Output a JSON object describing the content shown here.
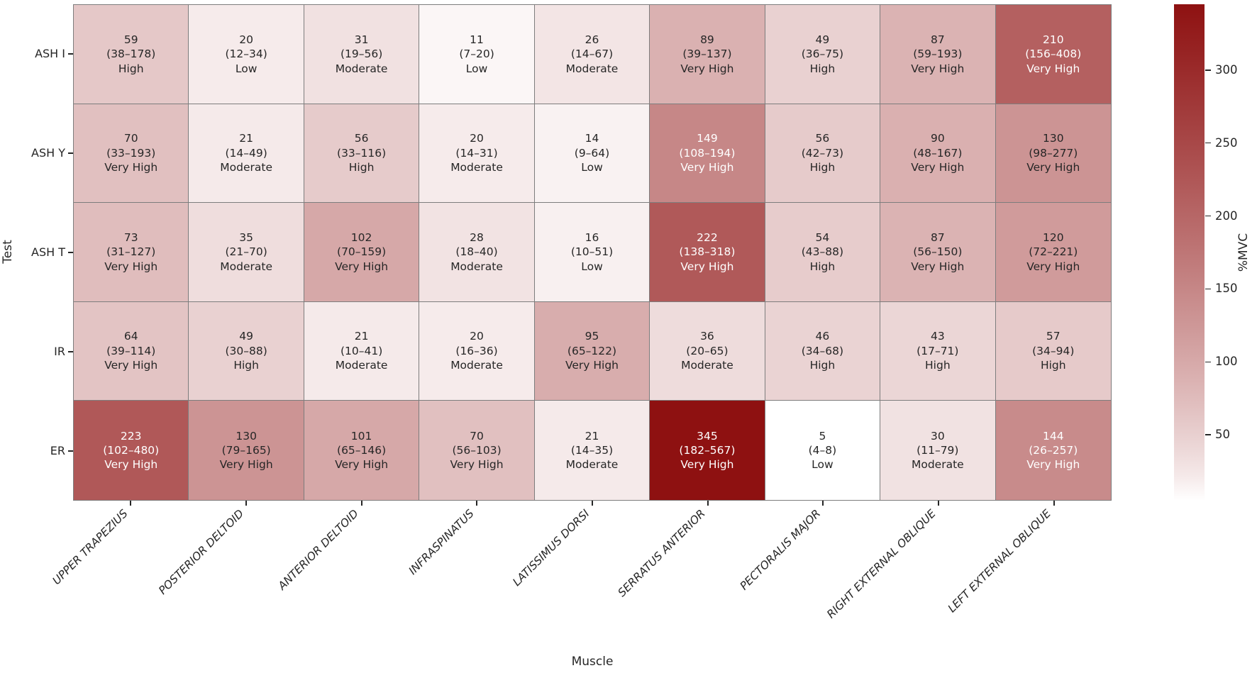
{
  "figure": {
    "xlabel": "Muscle",
    "ylabel": "Test",
    "colorbar_label": "%MVC"
  },
  "chart_data": {
    "type": "heatmap",
    "title": "",
    "xlabel": "Muscle",
    "ylabel": "Test",
    "legend_position": "right-colorbar",
    "grid_line_color": "#7d7d7d",
    "colorbar": {
      "label": "%MVC",
      "ticks": [
        50,
        100,
        150,
        200,
        250,
        300
      ],
      "vmin": 5,
      "vmax": 345,
      "colormap_low": "#ffffff",
      "colormap_high": "#8e1111"
    },
    "columns": [
      "UPPER TRAPEZIUS",
      "POSTERIOR DELTOID",
      "ANTERIOR DELTOID",
      "INFRASPINATUS",
      "LATISSIMUS DORSI",
      "SERRATUS ANTERIOR",
      "PECTORALIS MAJOR",
      "RIGHT EXTERNAL OBLIQUE",
      "LEFT EXTERNAL OBLIQUE"
    ],
    "rows": [
      "ASH I",
      "ASH Y",
      "ASH T",
      "IR",
      "ER"
    ],
    "cells": [
      [
        {
          "value": 59,
          "range": "(38–178)",
          "level": "High"
        },
        {
          "value": 20,
          "range": "(12–34)",
          "level": "Low"
        },
        {
          "value": 31,
          "range": "(19–56)",
          "level": "Moderate"
        },
        {
          "value": 11,
          "range": "(7–20)",
          "level": "Low"
        },
        {
          "value": 26,
          "range": "(14–67)",
          "level": "Moderate"
        },
        {
          "value": 89,
          "range": "(39–137)",
          "level": "Very High"
        },
        {
          "value": 49,
          "range": "(36–75)",
          "level": "High"
        },
        {
          "value": 87,
          "range": "(59–193)",
          "level": "Very High"
        },
        {
          "value": 210,
          "range": "(156–408)",
          "level": "Very High"
        }
      ],
      [
        {
          "value": 70,
          "range": "(33–193)",
          "level": "Very High"
        },
        {
          "value": 21,
          "range": "(14–49)",
          "level": "Moderate"
        },
        {
          "value": 56,
          "range": "(33–116)",
          "level": "High"
        },
        {
          "value": 20,
          "range": "(14–31)",
          "level": "Moderate"
        },
        {
          "value": 14,
          "range": "(9–64)",
          "level": "Low"
        },
        {
          "value": 149,
          "range": "(108–194)",
          "level": "Very High"
        },
        {
          "value": 56,
          "range": "(42–73)",
          "level": "High"
        },
        {
          "value": 90,
          "range": "(48–167)",
          "level": "Very High"
        },
        {
          "value": 130,
          "range": "(98–277)",
          "level": "Very High"
        }
      ],
      [
        {
          "value": 73,
          "range": "(31–127)",
          "level": "Very High"
        },
        {
          "value": 35,
          "range": "(21–70)",
          "level": "Moderate"
        },
        {
          "value": 102,
          "range": "(70–159)",
          "level": "Very High"
        },
        {
          "value": 28,
          "range": "(18–40)",
          "level": "Moderate"
        },
        {
          "value": 16,
          "range": "(10–51)",
          "level": "Low"
        },
        {
          "value": 222,
          "range": "(138–318)",
          "level": "Very High"
        },
        {
          "value": 54,
          "range": "(43–88)",
          "level": "High"
        },
        {
          "value": 87,
          "range": "(56–150)",
          "level": "Very High"
        },
        {
          "value": 120,
          "range": "(72–221)",
          "level": "Very High"
        }
      ],
      [
        {
          "value": 64,
          "range": "(39–114)",
          "level": "Very High"
        },
        {
          "value": 49,
          "range": "(30–88)",
          "level": "High"
        },
        {
          "value": 21,
          "range": "(10–41)",
          "level": "Moderate"
        },
        {
          "value": 20,
          "range": "(16–36)",
          "level": "Moderate"
        },
        {
          "value": 95,
          "range": "(65–122)",
          "level": "Very High"
        },
        {
          "value": 36,
          "range": "(20–65)",
          "level": "Moderate"
        },
        {
          "value": 46,
          "range": "(34–68)",
          "level": "High"
        },
        {
          "value": 43,
          "range": "(17–71)",
          "level": "High"
        },
        {
          "value": 57,
          "range": "(34–94)",
          "level": "High"
        }
      ],
      [
        {
          "value": 223,
          "range": "(102–480)",
          "level": "Very High"
        },
        {
          "value": 130,
          "range": "(79–165)",
          "level": "Very High"
        },
        {
          "value": 101,
          "range": "(65–146)",
          "level": "Very High"
        },
        {
          "value": 70,
          "range": "(56–103)",
          "level": "Very High"
        },
        {
          "value": 21,
          "range": "(14–35)",
          "level": "Moderate"
        },
        {
          "value": 345,
          "range": "(182–567)",
          "level": "Very High"
        },
        {
          "value": 5,
          "range": "(4–8)",
          "level": "Low"
        },
        {
          "value": 30,
          "range": "(11–79)",
          "level": "Moderate"
        },
        {
          "value": 144,
          "range": "(26–257)",
          "level": "Very High"
        }
      ]
    ]
  }
}
